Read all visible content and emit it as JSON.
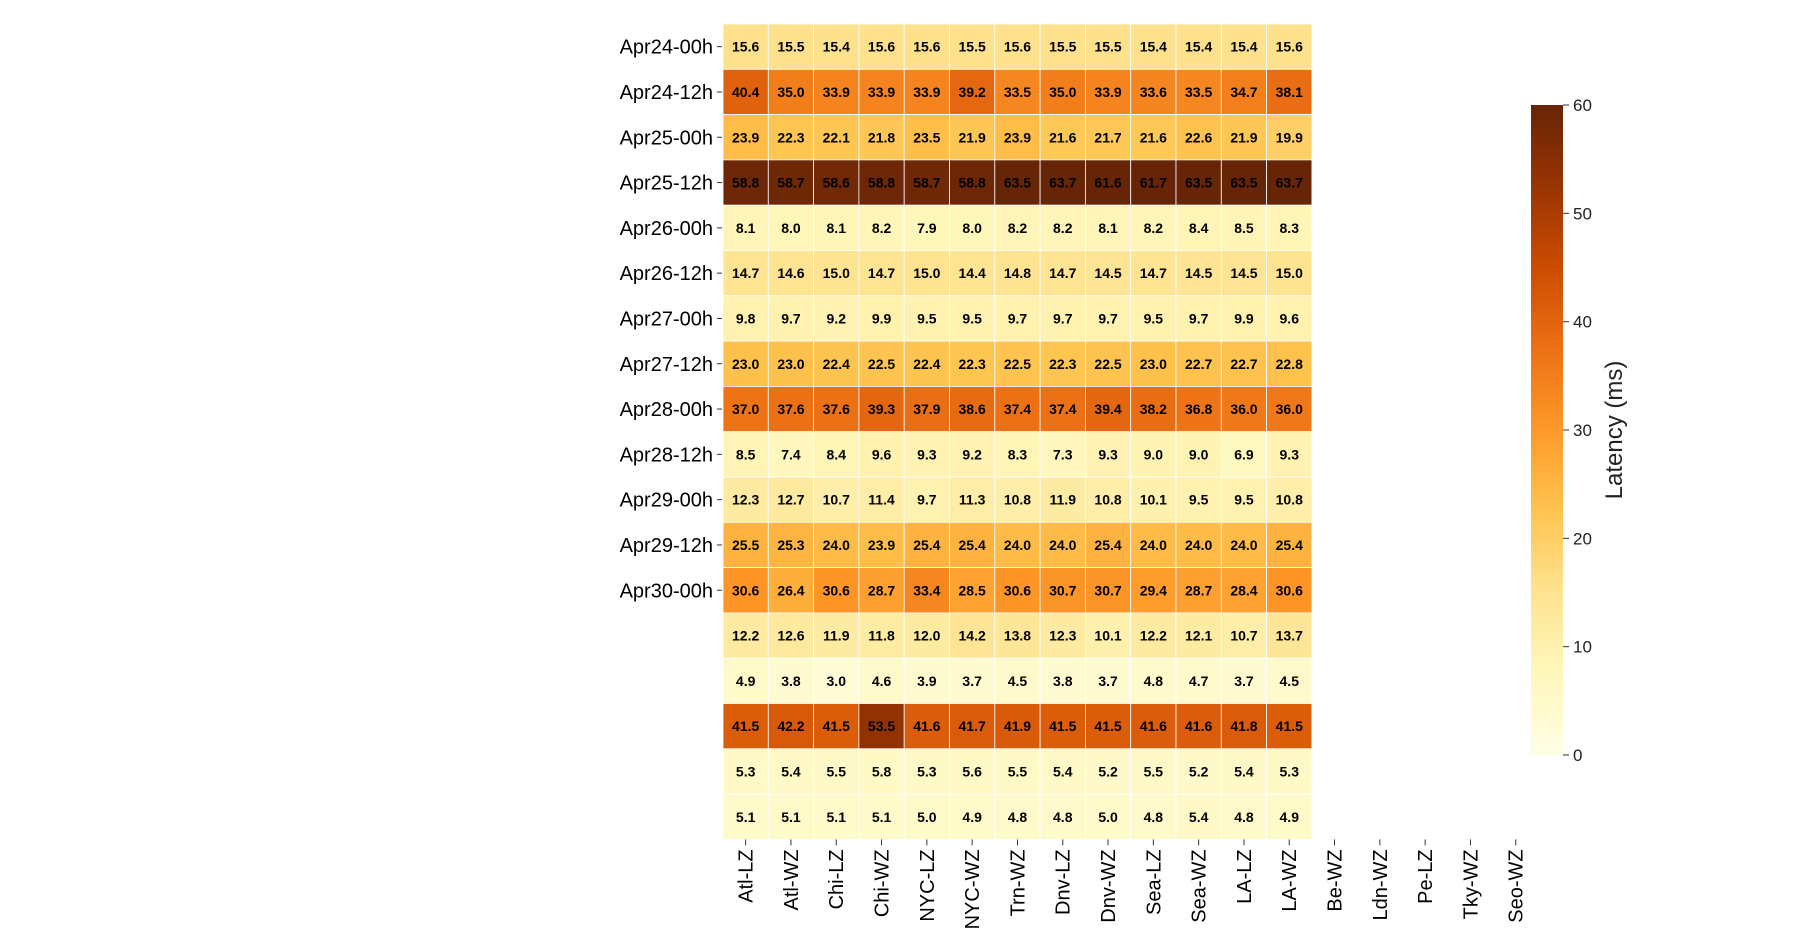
{
  "chart_data": {
    "type": "heatmap",
    "title": "",
    "xlabel": "",
    "ylabel": "",
    "columns": [
      "Atl-LZ",
      "Atl-WZ",
      "Chi-LZ",
      "Chi-WZ",
      "NYC-LZ",
      "NYC-WZ",
      "Trn-WZ",
      "Dnv-LZ",
      "Dnv-WZ",
      "Sea-LZ",
      "Sea-WZ",
      "LA-LZ",
      "LA-WZ",
      "Be-WZ",
      "Ldn-WZ",
      "Pe-LZ",
      "Tky-WZ",
      "Seo-WZ"
    ],
    "rows": [
      "Apr24-00h",
      "Apr24-12h",
      "Apr25-00h",
      "Apr25-12h",
      "Apr26-00h",
      "Apr26-12h",
      "Apr27-00h",
      "Apr27-12h",
      "Apr28-00h",
      "Apr28-12h",
      "Apr29-00h",
      "Apr29-12h",
      "Apr30-00h",
      "",
      "",
      "",
      "",
      ""
    ],
    "values": [
      [
        15.6,
        15.5,
        15.4,
        15.6,
        15.6,
        15.5,
        15.6,
        15.5,
        15.5,
        15.4,
        15.4,
        15.4,
        15.6
      ],
      [
        40.4,
        35.0,
        33.9,
        33.9,
        33.9,
        39.2,
        33.5,
        35.0,
        33.9,
        33.6,
        33.5,
        34.7,
        38.1
      ],
      [
        23.9,
        22.3,
        22.1,
        21.8,
        23.5,
        21.9,
        23.9,
        21.6,
        21.7,
        21.6,
        22.6,
        21.9,
        19.9
      ],
      [
        58.8,
        58.7,
        58.6,
        58.8,
        58.7,
        58.8,
        63.5,
        63.7,
        61.6,
        61.7,
        63.5,
        63.5,
        63.7
      ],
      [
        8.1,
        8.0,
        8.1,
        8.2,
        7.9,
        8.0,
        8.2,
        8.2,
        8.1,
        8.2,
        8.4,
        8.5,
        8.3
      ],
      [
        14.7,
        14.6,
        15.0,
        14.7,
        15.0,
        14.4,
        14.8,
        14.7,
        14.5,
        14.7,
        14.5,
        14.5,
        15.0
      ],
      [
        9.8,
        9.7,
        9.2,
        9.9,
        9.5,
        9.5,
        9.7,
        9.7,
        9.7,
        9.5,
        9.7,
        9.9,
        9.6
      ],
      [
        23.0,
        23.0,
        22.4,
        22.5,
        22.4,
        22.3,
        22.5,
        22.3,
        22.5,
        23.0,
        22.7,
        22.7,
        22.8
      ],
      [
        37.0,
        37.6,
        37.6,
        39.3,
        37.9,
        38.6,
        37.4,
        37.4,
        39.4,
        38.2,
        36.8,
        36.0,
        36.0
      ],
      [
        8.5,
        7.4,
        8.4,
        9.6,
        9.3,
        9.2,
        8.3,
        7.3,
        9.3,
        9.0,
        9.0,
        6.9,
        9.3
      ],
      [
        12.3,
        12.7,
        10.7,
        11.4,
        9.7,
        11.3,
        10.8,
        11.9,
        10.8,
        10.1,
        9.5,
        9.5,
        10.8
      ],
      [
        25.5,
        25.3,
        24.0,
        23.9,
        25.4,
        25.4,
        24.0,
        24.0,
        25.4,
        24.0,
        24.0,
        24.0,
        25.4
      ],
      [
        30.6,
        26.4,
        30.6,
        28.7,
        33.4,
        28.5,
        30.6,
        30.7,
        30.7,
        29.4,
        28.7,
        28.4,
        30.6
      ],
      [
        12.2,
        12.6,
        11.9,
        11.8,
        12.0,
        14.2,
        13.8,
        12.3,
        10.1,
        12.2,
        12.1,
        10.7,
        13.7
      ],
      [
        4.9,
        3.8,
        3.0,
        4.6,
        3.9,
        3.7,
        4.5,
        3.8,
        3.7,
        4.8,
        4.7,
        3.7,
        4.5
      ],
      [
        41.5,
        42.2,
        41.5,
        53.5,
        41.6,
        41.7,
        41.9,
        41.5,
        41.5,
        41.6,
        41.6,
        41.8,
        41.5
      ],
      [
        5.3,
        5.4,
        5.5,
        5.8,
        5.3,
        5.6,
        5.5,
        5.4,
        5.2,
        5.5,
        5.2,
        5.4,
        5.3
      ],
      [
        5.1,
        5.1,
        5.1,
        5.1,
        5.0,
        4.9,
        4.8,
        4.8,
        5.0,
        4.8,
        5.4,
        4.8,
        4.9
      ]
    ],
    "colorbar": {
      "label": "Latency (ms)",
      "range": [
        0,
        60
      ],
      "ticks": [
        0,
        10,
        20,
        30,
        40,
        50,
        60
      ],
      "colormap": "YlOrBr",
      "stops": [
        "#ffffe5",
        "#fff7bc",
        "#fee391",
        "#fec44f",
        "#fe9929",
        "#ec7014",
        "#cc4c02",
        "#993404",
        "#662506"
      ]
    },
    "grid": false,
    "legend": "colorbar-right"
  }
}
